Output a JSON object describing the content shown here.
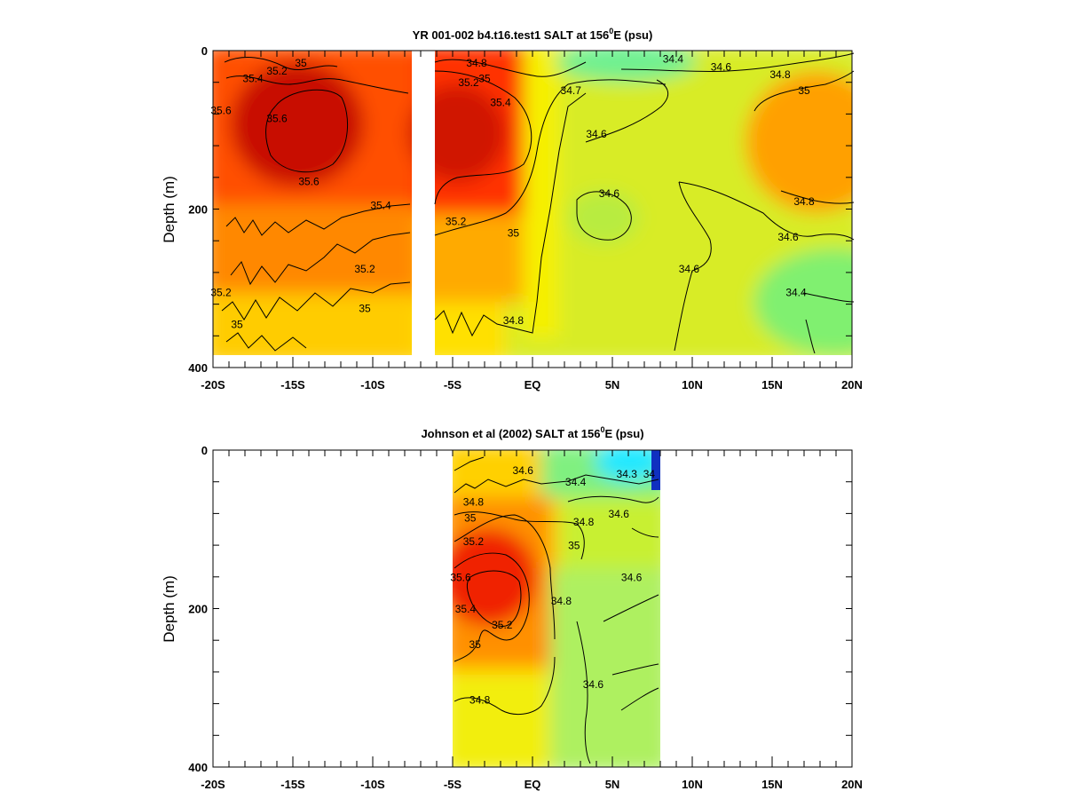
{
  "chart_data": [
    {
      "type": "heatmap",
      "title": "YR 001-002 b4.t16.test1 SALT at 156",
      "title_sup": "0",
      "title_tail": "E (psu)",
      "ylabel": "Depth (m)",
      "xlabel": "",
      "xlim": [
        -20,
        20
      ],
      "ylim": [
        400,
        0
      ],
      "x_tick_labels": [
        "-20S",
        "-15S",
        "-10S",
        "-5S",
        "EQ",
        "5N",
        "10N",
        "15N",
        "20N"
      ],
      "x_tick_values": [
        -20,
        -15,
        -10,
        -5,
        0,
        5,
        10,
        15,
        20
      ],
      "y_tick_labels": [
        "0",
        "200",
        "400"
      ],
      "y_tick_values": [
        0,
        200,
        400
      ],
      "data_extent": {
        "x": [
          -19.8,
          20
        ],
        "depth": [
          0,
          382
        ]
      },
      "gap_x": [
        -7.4,
        -6.0
      ],
      "color_scale": "salinity rainbow (blue low, red high)",
      "grid": false,
      "contour_labels": [
        {
          "text": "35",
          "x": -14.5,
          "d": 20
        },
        {
          "text": "35.2",
          "x": -16.0,
          "d": 30
        },
        {
          "text": "35.4",
          "x": -17.5,
          "d": 40
        },
        {
          "text": "35.6",
          "x": -19.5,
          "d": 80
        },
        {
          "text": "35.6",
          "x": -16.0,
          "d": 90
        },
        {
          "text": "35.6",
          "x": -14.0,
          "d": 170
        },
        {
          "text": "35.4",
          "x": -9.5,
          "d": 200
        },
        {
          "text": "35.2",
          "x": -10.5,
          "d": 280
        },
        {
          "text": "35.2",
          "x": -19.5,
          "d": 310
        },
        {
          "text": "35",
          "x": -10.5,
          "d": 330
        },
        {
          "text": "35",
          "x": -18.5,
          "d": 350
        },
        {
          "text": "34.8",
          "x": -3.5,
          "d": 20
        },
        {
          "text": "35.2",
          "x": -4.0,
          "d": 45
        },
        {
          "text": "35",
          "x": -3.0,
          "d": 40
        },
        {
          "text": "35.4",
          "x": -2.0,
          "d": 70
        },
        {
          "text": "34.7",
          "x": 2.4,
          "d": 55
        },
        {
          "text": "34.6",
          "x": 4.0,
          "d": 110
        },
        {
          "text": "34.6",
          "x": 4.8,
          "d": 185
        },
        {
          "text": "35.2",
          "x": -4.8,
          "d": 220
        },
        {
          "text": "35",
          "x": -1.2,
          "d": 235
        },
        {
          "text": "34.8",
          "x": -1.2,
          "d": 345
        },
        {
          "text": "34.4",
          "x": 8.8,
          "d": 15
        },
        {
          "text": "34.6",
          "x": 11.8,
          "d": 25
        },
        {
          "text": "34.8",
          "x": 15.5,
          "d": 35
        },
        {
          "text": "35",
          "x": 17.0,
          "d": 55
        },
        {
          "text": "34.6",
          "x": 9.8,
          "d": 280
        },
        {
          "text": "34.8",
          "x": 17.0,
          "d": 195
        },
        {
          "text": "34.6",
          "x": 16.0,
          "d": 240
        },
        {
          "text": "34.4",
          "x": 16.5,
          "d": 310
        }
      ]
    },
    {
      "type": "heatmap",
      "title": "Johnson et al (2002) SALT at 156",
      "title_sup": "0",
      "title_tail": "E (psu)",
      "ylabel": "Depth (m)",
      "xlabel": "",
      "xlim": [
        -20,
        20
      ],
      "ylim": [
        400,
        0
      ],
      "x_tick_labels": [
        "-20S",
        "-15S",
        "-10S",
        "-5S",
        "EQ",
        "5N",
        "10N",
        "15N",
        "20N"
      ],
      "x_tick_values": [
        -20,
        -15,
        -10,
        -5,
        0,
        5,
        10,
        15,
        20
      ],
      "y_tick_labels": [
        "0",
        "200",
        "400"
      ],
      "y_tick_values": [
        0,
        200,
        400
      ],
      "data_extent": {
        "x": [
          -5.0,
          8.0
        ],
        "depth": [
          0,
          400
        ]
      },
      "color_scale": "salinity rainbow (blue low, red high)",
      "grid": false,
      "contour_labels": [
        {
          "text": "34.6",
          "x": -0.6,
          "d": 30
        },
        {
          "text": "34.4",
          "x": 2.7,
          "d": 45
        },
        {
          "text": "34.3",
          "x": 5.9,
          "d": 35
        },
        {
          "text": "34",
          "x": 7.3,
          "d": 35
        },
        {
          "text": "34.8",
          "x": -3.7,
          "d": 70
        },
        {
          "text": "35",
          "x": -3.9,
          "d": 90
        },
        {
          "text": "34.8",
          "x": 3.2,
          "d": 95
        },
        {
          "text": "34.6",
          "x": 5.4,
          "d": 85
        },
        {
          "text": "35.2",
          "x": -3.7,
          "d": 120
        },
        {
          "text": "35",
          "x": 2.6,
          "d": 125
        },
        {
          "text": "35.6",
          "x": -4.5,
          "d": 165
        },
        {
          "text": "34.6",
          "x": 6.2,
          "d": 165
        },
        {
          "text": "35.4",
          "x": -4.2,
          "d": 205
        },
        {
          "text": "34.8",
          "x": 1.8,
          "d": 195
        },
        {
          "text": "35.2",
          "x": -1.9,
          "d": 225
        },
        {
          "text": "35",
          "x": -3.6,
          "d": 250
        },
        {
          "text": "34.8",
          "x": -3.3,
          "d": 320
        },
        {
          "text": "34.6",
          "x": 3.8,
          "d": 300
        }
      ]
    }
  ]
}
